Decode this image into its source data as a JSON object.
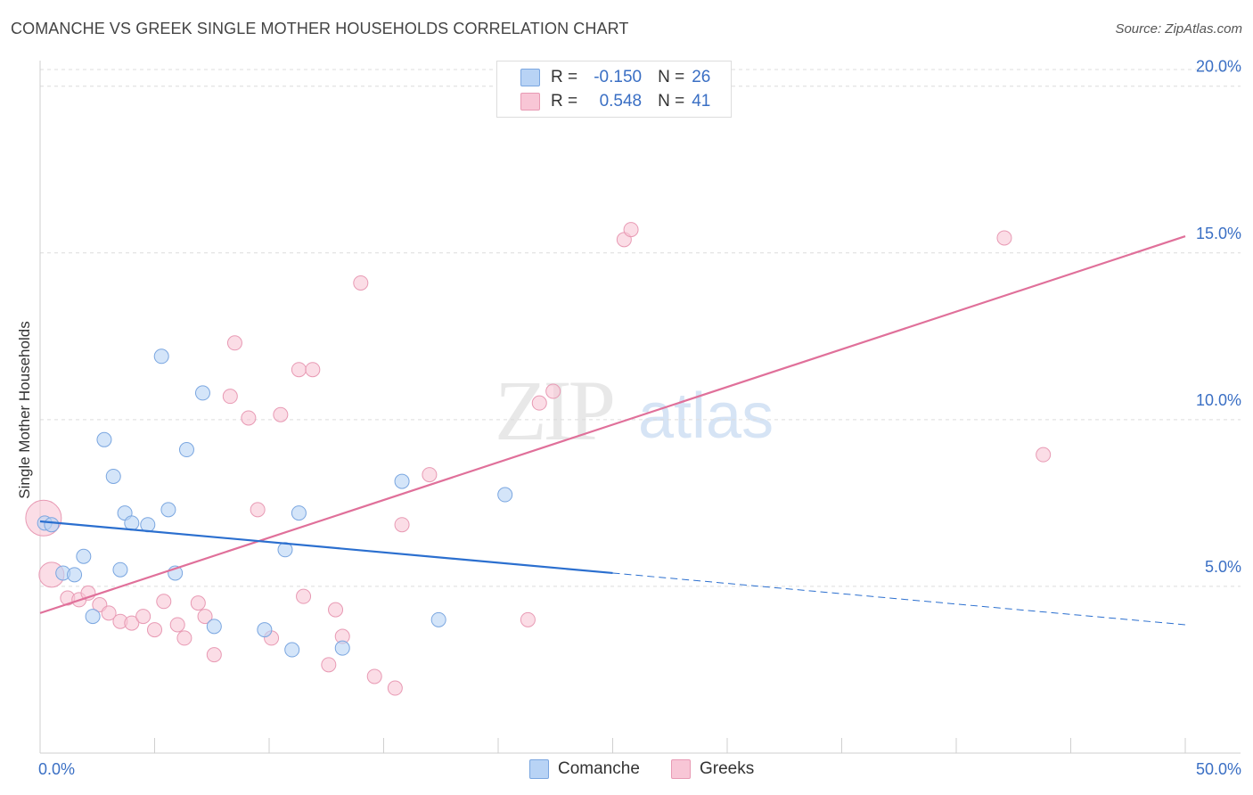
{
  "title": "COMANCHE VS GREEK SINGLE MOTHER HOUSEHOLDS CORRELATION CHART",
  "source": "Source: ZipAtlas.com",
  "watermark": {
    "zip": "ZIP",
    "atlas": "atlas"
  },
  "legend": {
    "rows": [
      {
        "r_label": "R =",
        "r_value": "-0.150",
        "n_label": "N =",
        "n_value": "26",
        "color": "#b8d3f5"
      },
      {
        "r_label": "R =",
        "r_value": "0.548",
        "n_label": "N =",
        "n_value": "41",
        "color": "#f8c6d6"
      }
    ]
  },
  "bottom_legend": [
    "Comanche",
    "Greeks"
  ],
  "colors": {
    "comanche_fill": "#b8d3f5",
    "comanche_stroke": "#7aa6e0",
    "comanche_line": "#2b6fcf",
    "greeks_fill": "#f8c6d6",
    "greeks_stroke": "#e89ab4",
    "greeks_line": "#e0709a",
    "tick_label": "#3a6fc4"
  },
  "chart_data": {
    "type": "scatter",
    "title": "COMANCHE VS GREEK SINGLE MOTHER HOUSEHOLDS CORRELATION CHART",
    "xlabel": "",
    "ylabel": "Single Mother Households",
    "xlim": [
      0,
      50
    ],
    "ylim": [
      0,
      20.5
    ],
    "x_tick_labels": [
      "0.0%",
      "50.0%"
    ],
    "y_ticks": [
      5,
      10,
      15,
      20
    ],
    "y_tick_labels": [
      "5.0%",
      "10.0%",
      "15.0%",
      "20.0%"
    ],
    "grid": true,
    "series": [
      {
        "name": "Comanche",
        "points": [
          [
            0.2,
            6.9
          ],
          [
            0.5,
            6.85
          ],
          [
            1.0,
            5.4
          ],
          [
            1.5,
            5.35
          ],
          [
            1.9,
            5.9
          ],
          [
            2.3,
            4.1
          ],
          [
            2.8,
            9.4
          ],
          [
            3.2,
            8.3
          ],
          [
            3.5,
            5.5
          ],
          [
            3.7,
            7.2
          ],
          [
            4.0,
            6.9
          ],
          [
            4.7,
            6.85
          ],
          [
            5.3,
            11.9
          ],
          [
            5.6,
            7.3
          ],
          [
            5.9,
            5.4
          ],
          [
            6.4,
            9.1
          ],
          [
            7.1,
            10.8
          ],
          [
            7.6,
            3.8
          ],
          [
            9.8,
            3.7
          ],
          [
            10.7,
            6.1
          ],
          [
            11.0,
            3.1
          ],
          [
            11.3,
            7.2
          ],
          [
            13.2,
            3.15
          ],
          [
            15.8,
            8.15
          ],
          [
            17.4,
            4.0
          ],
          [
            20.3,
            7.75
          ]
        ],
        "trend": {
          "x_start": 0,
          "y_start": 6.95,
          "x_solid_end": 25,
          "y_solid_end": 5.4,
          "x_dash_end": 50,
          "y_dash_end": 3.85
        }
      },
      {
        "name": "Greeks",
        "points": [
          [
            0.15,
            7.05
          ],
          [
            0.5,
            5.35
          ],
          [
            1.2,
            4.65
          ],
          [
            1.7,
            4.6
          ],
          [
            2.1,
            4.8
          ],
          [
            2.6,
            4.45
          ],
          [
            3.0,
            4.2
          ],
          [
            3.5,
            3.95
          ],
          [
            4.0,
            3.9
          ],
          [
            4.5,
            4.1
          ],
          [
            5.0,
            3.7
          ],
          [
            5.4,
            4.55
          ],
          [
            6.0,
            3.85
          ],
          [
            6.3,
            3.45
          ],
          [
            6.9,
            4.5
          ],
          [
            7.2,
            4.1
          ],
          [
            7.6,
            2.95
          ],
          [
            8.3,
            10.7
          ],
          [
            8.5,
            12.3
          ],
          [
            9.1,
            10.05
          ],
          [
            9.5,
            7.3
          ],
          [
            10.1,
            3.45
          ],
          [
            10.5,
            10.15
          ],
          [
            11.3,
            11.5
          ],
          [
            11.5,
            4.7
          ],
          [
            11.9,
            11.5
          ],
          [
            12.6,
            2.65
          ],
          [
            12.9,
            4.3
          ],
          [
            13.2,
            3.5
          ],
          [
            14.0,
            14.1
          ],
          [
            14.6,
            2.3
          ],
          [
            15.5,
            1.95
          ],
          [
            15.8,
            6.85
          ],
          [
            17.0,
            8.35
          ],
          [
            21.3,
            4.0
          ],
          [
            21.8,
            10.5
          ],
          [
            22.4,
            10.85
          ],
          [
            25.5,
            15.4
          ],
          [
            25.8,
            15.7
          ],
          [
            42.1,
            15.45
          ],
          [
            43.8,
            8.95
          ]
        ],
        "trend": {
          "x_start": 0,
          "y_start": 4.2,
          "x_end": 50,
          "y_end": 15.5
        }
      }
    ]
  }
}
